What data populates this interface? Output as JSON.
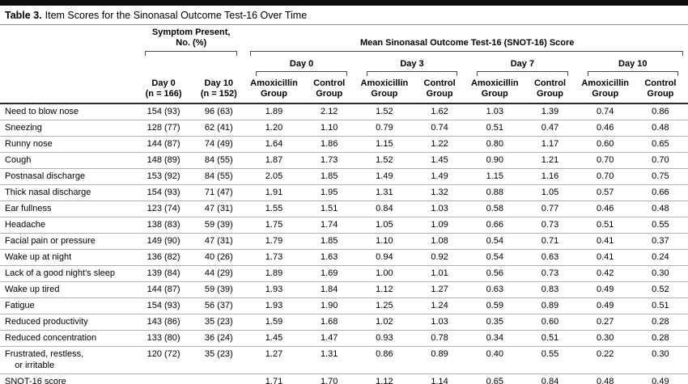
{
  "title": {
    "label": "Table 3.",
    "text": "Item Scores for the Sinonasal Outcome Test-16 Over Time"
  },
  "header": {
    "symptom_present_group": "Symptom Present,\nNo. (%)",
    "snot_group": "Mean Sinonasal Outcome Test-16 (SNOT-16) Score",
    "day_groups": [
      "Day 0",
      "Day 3",
      "Day 7",
      "Day 10"
    ],
    "symptom_cols": [
      "Day 0\n(n = 166)",
      "Day 10\n(n = 152)"
    ],
    "group_cols": [
      "Amoxicillin\nGroup",
      "Control\nGroup"
    ]
  },
  "table": {
    "rows": [
      {
        "label": "Need to blow nose",
        "cells": [
          "154 (93)",
          "96 (63)",
          "1.89",
          "2.12",
          "1.52",
          "1.62",
          "1.03",
          "1.39",
          "0.74",
          "0.86"
        ]
      },
      {
        "label": "Sneezing",
        "cells": [
          "128 (77)",
          "62 (41)",
          "1.20",
          "1.10",
          "0.79",
          "0.74",
          "0.51",
          "0.47",
          "0.46",
          "0.48"
        ]
      },
      {
        "label": "Runny nose",
        "cells": [
          "144 (87)",
          "74 (49)",
          "1.64",
          "1.86",
          "1.15",
          "1.22",
          "0.80",
          "1.17",
          "0.60",
          "0.65"
        ]
      },
      {
        "label": "Cough",
        "cells": [
          "148 (89)",
          "84 (55)",
          "1.87",
          "1.73",
          "1.52",
          "1.45",
          "0.90",
          "1.21",
          "0.70",
          "0.70"
        ]
      },
      {
        "label": "Postnasal discharge",
        "cells": [
          "153 (92)",
          "84 (55)",
          "2.05",
          "1.85",
          "1.49",
          "1.49",
          "1.15",
          "1.16",
          "0.70",
          "0.75"
        ]
      },
      {
        "label": "Thick nasal discharge",
        "cells": [
          "154 (93)",
          "71 (47)",
          "1.91",
          "1.95",
          "1.31",
          "1.32",
          "0.88",
          "1.05",
          "0.57",
          "0.66"
        ]
      },
      {
        "label": "Ear fullness",
        "cells": [
          "123 (74)",
          "47 (31)",
          "1.55",
          "1.51",
          "0.84",
          "1.03",
          "0.58",
          "0.77",
          "0.46",
          "0.48"
        ]
      },
      {
        "label": "Headache",
        "cells": [
          "138 (83)",
          "59 (39)",
          "1.75",
          "1.74",
          "1.05",
          "1.09",
          "0.66",
          "0.73",
          "0.51",
          "0.55"
        ]
      },
      {
        "label": "Facial pain or pressure",
        "cells": [
          "149 (90)",
          "47 (31)",
          "1.79",
          "1.85",
          "1.10",
          "1.08",
          "0.54",
          "0.71",
          "0.41",
          "0.37"
        ]
      },
      {
        "label": "Wake up at night",
        "cells": [
          "136 (82)",
          "40 (26)",
          "1.73",
          "1.63",
          "0.94",
          "0.92",
          "0.54",
          "0.63",
          "0.41",
          "0.24"
        ]
      },
      {
        "label": "Lack of a good night's sleep",
        "cells": [
          "139 (84)",
          "44 (29)",
          "1.89",
          "1.69",
          "1.00",
          "1.01",
          "0.56",
          "0.73",
          "0.42",
          "0.30"
        ]
      },
      {
        "label": "Wake up tired",
        "cells": [
          "144 (87)",
          "59 (39)",
          "1.93",
          "1.84",
          "1.12",
          "1.27",
          "0.63",
          "0.83",
          "0.49",
          "0.52"
        ]
      },
      {
        "label": "Fatigue",
        "cells": [
          "154 (93)",
          "56 (37)",
          "1.93",
          "1.90",
          "1.25",
          "1.24",
          "0.59",
          "0.89",
          "0.49",
          "0.51"
        ]
      },
      {
        "label": "Reduced productivity",
        "cells": [
          "143 (86)",
          "35 (23)",
          "1.59",
          "1.68",
          "1.02",
          "1.03",
          "0.35",
          "0.60",
          "0.27",
          "0.28"
        ]
      },
      {
        "label": "Reduced concentration",
        "cells": [
          "133 (80)",
          "36 (24)",
          "1.45",
          "1.47",
          "0.93",
          "0.78",
          "0.34",
          "0.51",
          "0.30",
          "0.28"
        ]
      },
      {
        "label": "Frustrated, restless,\n    or irritable",
        "cells": [
          "120 (72)",
          "35 (23)",
          "1.27",
          "1.31",
          "0.86",
          "0.89",
          "0.40",
          "0.55",
          "0.22",
          "0.30"
        ]
      },
      {
        "label": "SNOT-16 score",
        "cells": [
          "",
          "",
          "1.71",
          "1.70",
          "1.12",
          "1.14",
          "0.65",
          "0.84",
          "0.48",
          "0.49"
        ]
      }
    ]
  }
}
